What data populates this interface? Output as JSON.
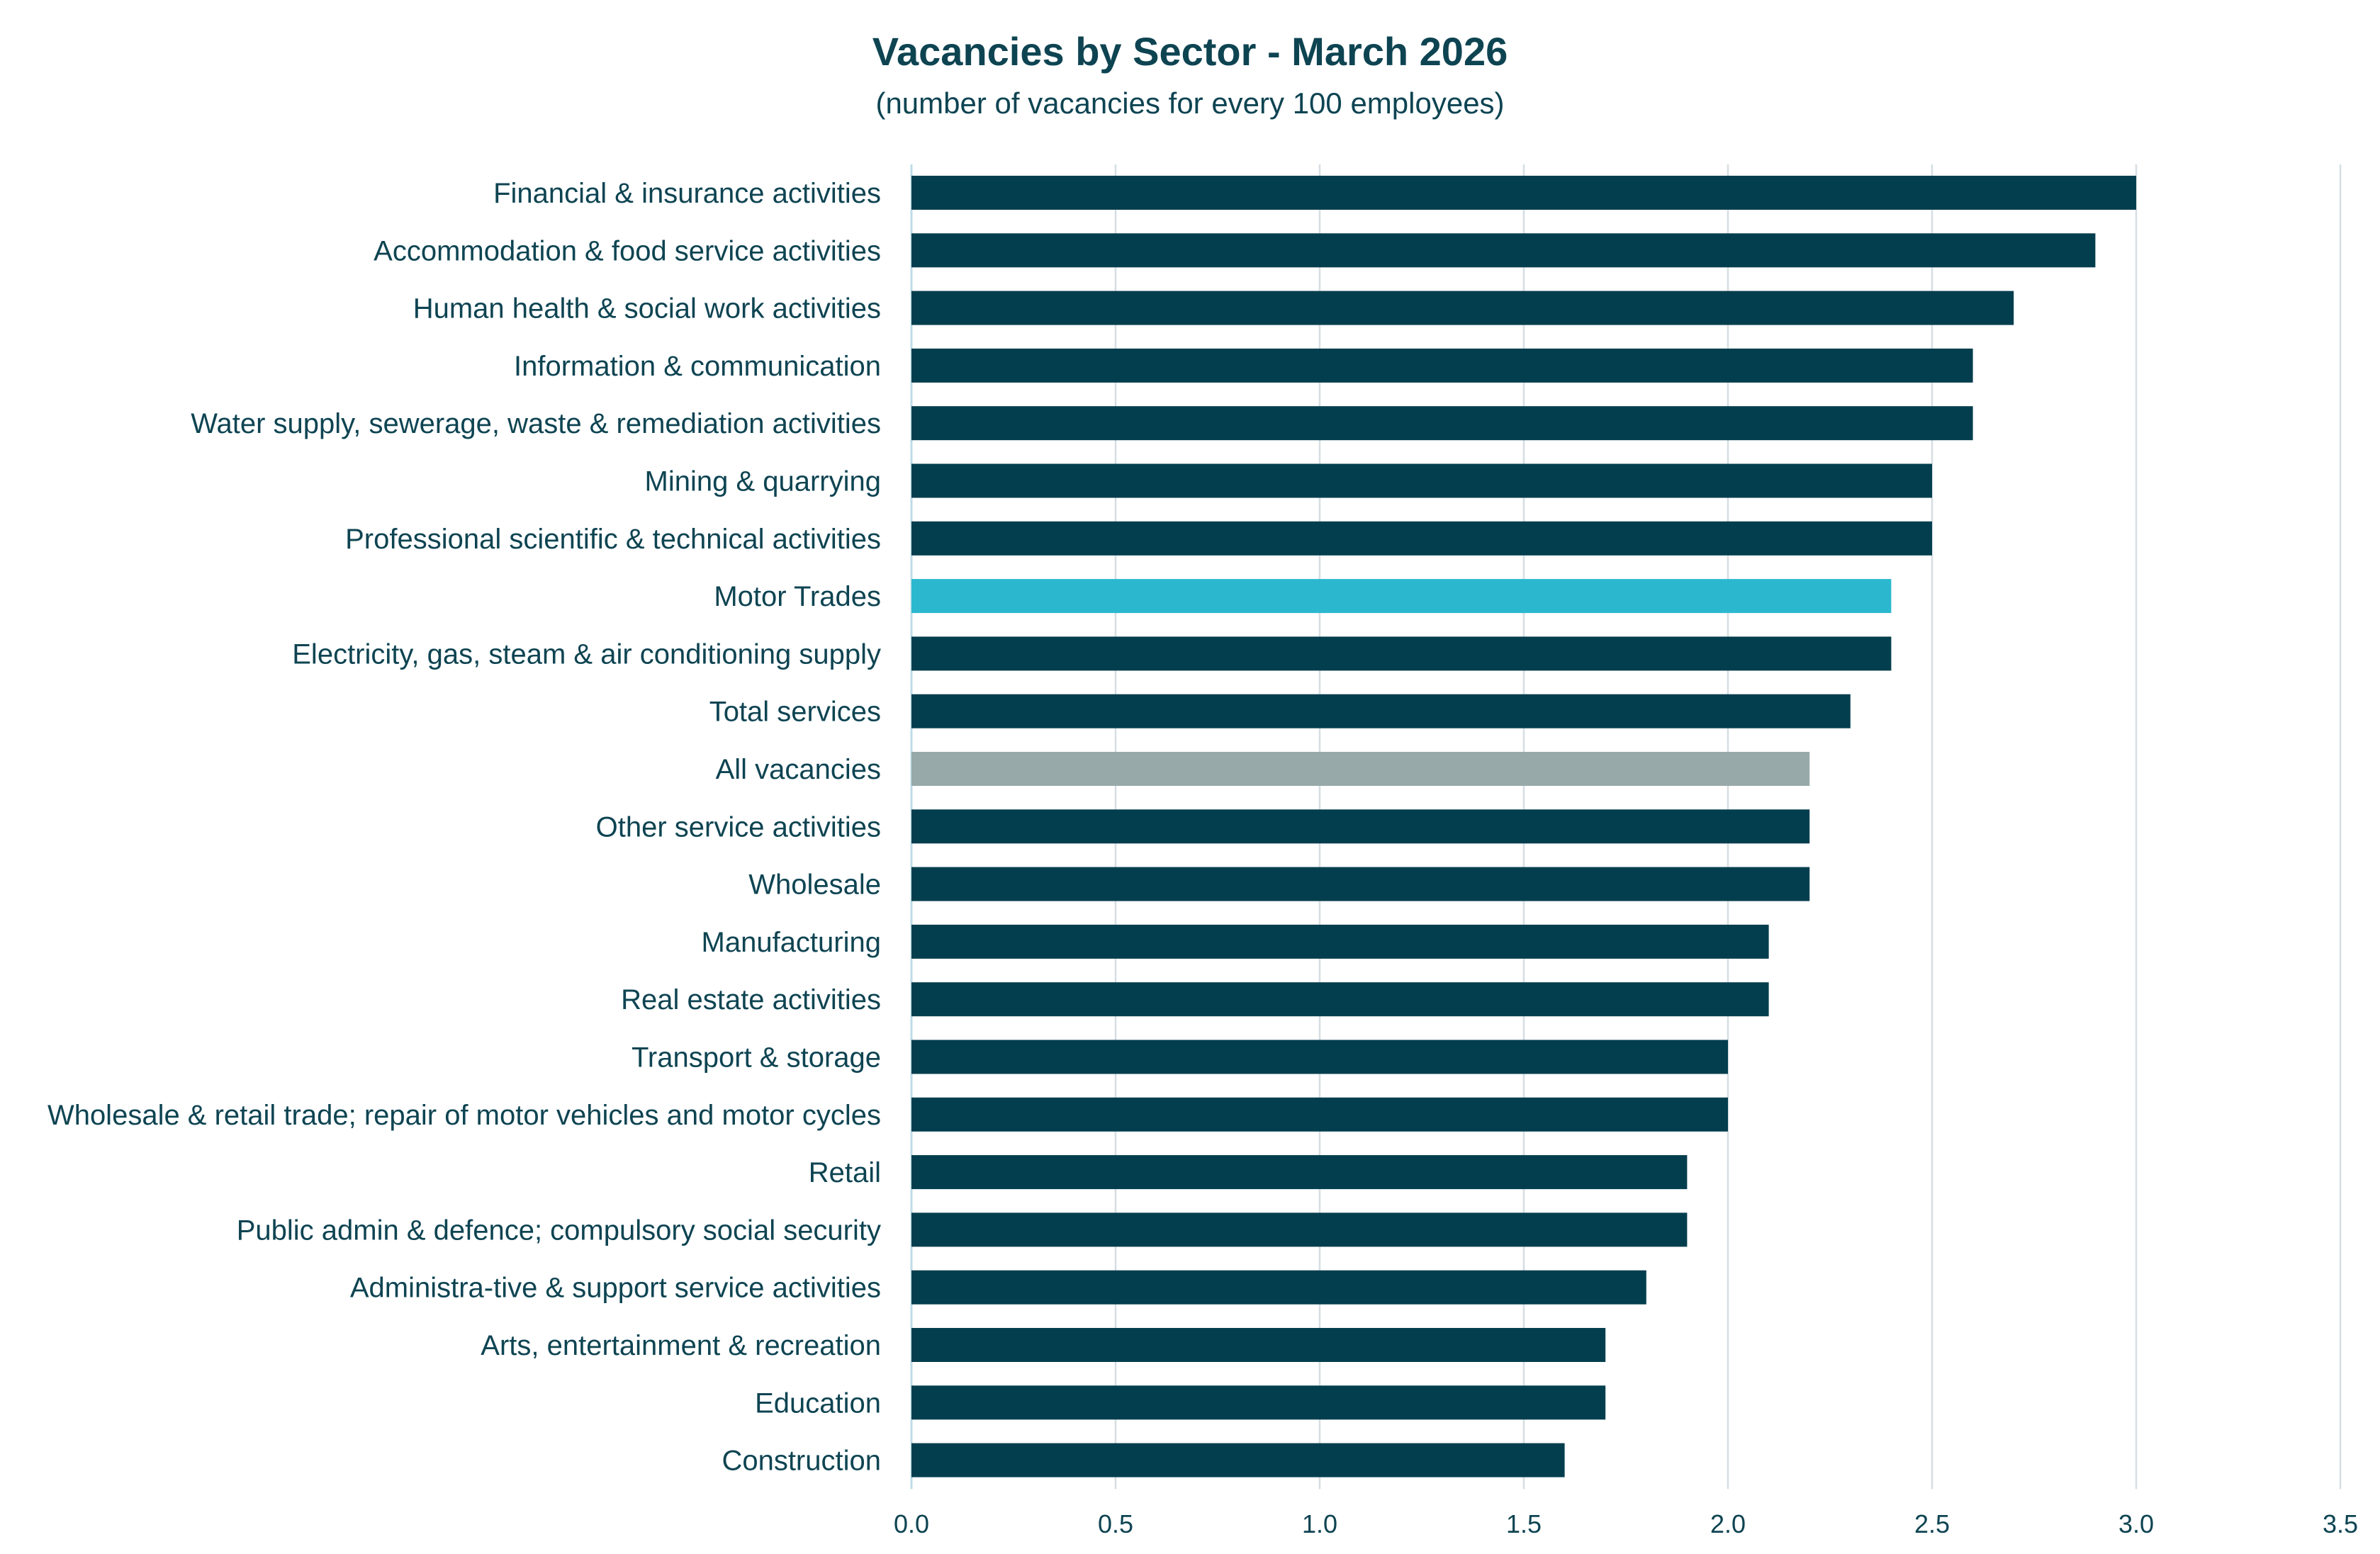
{
  "chart_data": {
    "type": "bar",
    "orientation": "horizontal",
    "title": "Vacancies by Sector - March 2026",
    "subtitle": "(number of vacancies for every 100 employees)",
    "xlabel": "",
    "ylabel": "",
    "xlim": [
      0,
      3.5
    ],
    "x_ticks": [
      "0.0",
      "0.5",
      "1.0",
      "1.5",
      "2.0",
      "2.5",
      "3.0",
      "3.5"
    ],
    "grid": "vertical",
    "legend": "none",
    "categories": [
      "Financial & insurance activities",
      "Accommodation & food service activities",
      "Human health & social work activities",
      "Information & communication",
      "Water supply, sewerage, waste & remediation activities",
      "Mining & quarrying",
      "Professional scientific & technical activities",
      "Motor Trades",
      "Electricity, gas, steam & air conditioning supply",
      "Total services",
      "All vacancies",
      "Other service activities",
      "Wholesale",
      "Manufacturing",
      "Real estate activities",
      "Transport & storage",
      "Wholesale & retail trade; repair of motor vehicles and motor cycles",
      "Retail",
      "Public admin & defence; compulsory social security",
      "Administra-tive & support service activities",
      "Arts, entertainment & recreation",
      "Education",
      "Construction"
    ],
    "values": [
      3.0,
      2.9,
      2.7,
      2.6,
      2.6,
      2.5,
      2.5,
      2.4,
      2.4,
      2.3,
      2.2,
      2.2,
      2.2,
      2.1,
      2.1,
      2.0,
      2.0,
      1.9,
      1.9,
      1.8,
      1.7,
      1.7,
      1.6
    ],
    "highlights": {
      "Motor Trades": "#2BB8CF",
      "All vacancies": "#97A9A8"
    },
    "colors": {
      "bar": "#033E4E",
      "text": "#0E4452",
      "grid": "#D5DEE2",
      "axis": "#BFDCE6"
    }
  }
}
